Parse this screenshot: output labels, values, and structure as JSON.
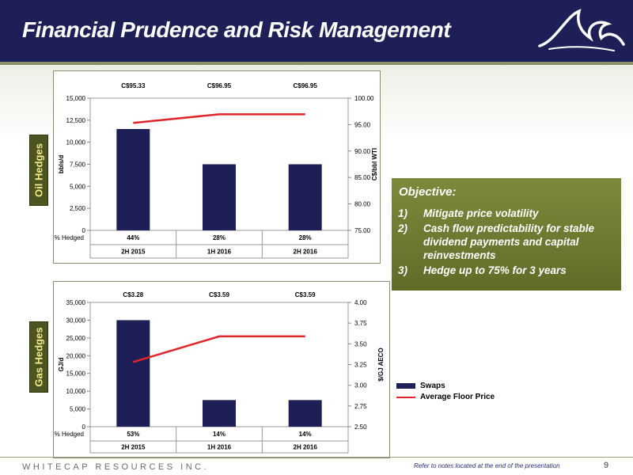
{
  "header": {
    "title": "Financial Prudence and Risk Management"
  },
  "side_labels": {
    "oil": "Oil Hedges",
    "gas": "Gas Hedges"
  },
  "objective": {
    "title": "Objective:",
    "items": [
      {
        "num": "1)",
        "text": "Mitigate price volatility"
      },
      {
        "num": "2)",
        "text": "Cash flow predictability for stable dividend payments and capital reinvestments"
      },
      {
        "num": "3)",
        "text": "Hedge up to 75% for 3 years"
      }
    ]
  },
  "legend": {
    "swaps": "Swaps",
    "floor": "Average Floor Price"
  },
  "footer": {
    "company": "WHITECAP RESOURCES INC.",
    "note": "Refer to notes located at the end of the presentation",
    "page": "9"
  },
  "colors": {
    "bar": "#1f1f57",
    "line": "#e0262a",
    "header": "#1f1f57",
    "accent": "#5f6c28"
  },
  "chart_data": [
    {
      "type": "bar",
      "categories": [
        "2H 2015",
        "1H 2016",
        "2H 2016"
      ],
      "values": [
        11500,
        7500,
        7500
      ],
      "ylim": [
        0,
        15000
      ],
      "yticks": [
        "15,000",
        "12,500",
        "10,000",
        "7,500",
        "5,000",
        "2,500",
        "0"
      ],
      "ylabel": "bbls/d",
      "y2lim": [
        75,
        100
      ],
      "y2ticks": [
        "100.00",
        "95.00",
        "90.00",
        "85.00",
        "80.00",
        "75.00"
      ],
      "y2label": "C$/bbl WTI",
      "line_values": [
        95.33,
        96.95,
        96.95
      ],
      "price_labels": [
        "C$95.33",
        "C$96.95",
        "C$96.95"
      ],
      "hedged_label": "% Hedged",
      "hedged": [
        "44%",
        "28%",
        "28%"
      ]
    },
    {
      "type": "bar",
      "categories": [
        "2H 2015",
        "1H 2016",
        "2H 2016"
      ],
      "values": [
        30000,
        7500,
        7500
      ],
      "ylim": [
        0,
        35000
      ],
      "yticks": [
        "35,000",
        "30,000",
        "25,000",
        "20,000",
        "15,000",
        "10,000",
        "5,000",
        "0"
      ],
      "ylabel": "GJ/d",
      "y2lim": [
        2.5,
        4.0
      ],
      "y2ticks": [
        "4.00",
        "3.75",
        "3.50",
        "3.25",
        "3.00",
        "2.75",
        "2.50"
      ],
      "y2label": "$/GJ AECO",
      "line_values": [
        3.28,
        3.59,
        3.59
      ],
      "price_labels": [
        "C$3.28",
        "C$3.59",
        "C$3.59"
      ],
      "hedged_label": "% Hedged",
      "hedged": [
        "53%",
        "14%",
        "14%"
      ]
    }
  ]
}
